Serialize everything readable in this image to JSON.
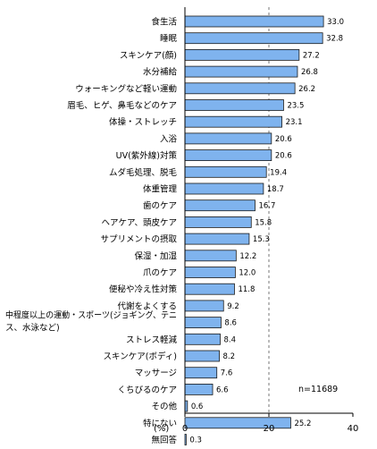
{
  "chart_data": {
    "type": "bar",
    "orientation": "horizontal",
    "categories": [
      "食生活",
      "睡眠",
      "スキンケア(顔)",
      "水分補給",
      "ウォーキングなど軽い運動",
      "眉毛、ヒゲ、鼻毛などのケア",
      "体操・ストレッチ",
      "入浴",
      "UV(紫外線)対策",
      "ムダ毛処理、脱毛",
      "体重管理",
      "歯のケア",
      "ヘアケア、頭皮ケア",
      "サプリメントの摂取",
      "保湿・加湿",
      "爪のケア",
      "便秘や冷え性対策",
      "代謝をよくする",
      "中程度以上の運動・スポーツ(ジョギング、テニス、水泳など)",
      "ストレス軽減",
      "スキンケア(ボディ)",
      "マッサージ",
      "くちびるのケア",
      "その他",
      "特にない",
      "無回答"
    ],
    "category_lines": [
      [
        "食生活"
      ],
      [
        "睡眠"
      ],
      [
        "スキンケア(顔)"
      ],
      [
        "水分補給"
      ],
      [
        "ウォーキングなど軽い運動"
      ],
      [
        "眉毛、ヒゲ、鼻毛などのケア"
      ],
      [
        "体操・ストレッチ"
      ],
      [
        "入浴"
      ],
      [
        "UV(紫外線)対策"
      ],
      [
        "ムダ毛処理、脱毛"
      ],
      [
        "体重管理"
      ],
      [
        "歯のケア"
      ],
      [
        "ヘアケア、頭皮ケア"
      ],
      [
        "サプリメントの摂取"
      ],
      [
        "保湿・加湿"
      ],
      [
        "爪のケア"
      ],
      [
        "便秘や冷え性対策"
      ],
      [
        "代謝をよくする"
      ],
      [
        "中程度以上の運動・スポーツ(ジョギング、テニ",
        "ス、水泳など)"
      ],
      [
        "ストレス軽減"
      ],
      [
        "スキンケア(ボディ)"
      ],
      [
        "マッサージ"
      ],
      [
        "くちびるのケア"
      ],
      [
        "その他"
      ],
      [
        "特にない"
      ],
      [
        "無回答"
      ]
    ],
    "values": [
      33.0,
      32.8,
      27.2,
      26.8,
      26.2,
      23.5,
      23.1,
      20.6,
      20.6,
      19.4,
      18.7,
      16.7,
      15.8,
      15.3,
      12.2,
      12.0,
      11.8,
      9.2,
      8.6,
      8.4,
      8.2,
      7.6,
      6.6,
      0.6,
      25.2,
      0.3
    ],
    "value_labels": [
      "33.0",
      "32.8",
      "27.2",
      "26.8",
      "26.2",
      "23.5",
      "23.1",
      "20.6",
      "20.6",
      "19.4",
      "18.7",
      "16.7",
      "15.8",
      "15.3",
      "12.2",
      "12.0",
      "11.8",
      "9.2",
      "8.6",
      "8.4",
      "8.2",
      "7.6",
      "6.6",
      "0.6",
      "25.2",
      "0.3"
    ],
    "xlim": [
      0,
      40
    ],
    "xticks": [
      "0",
      "20",
      "40"
    ],
    "xlabel": "(%)",
    "annotation": "n=11689",
    "grid": "dashed vertical line at 20",
    "bar_color": "#7FB3EE",
    "bar_edge_color": "#1a1a1a"
  }
}
